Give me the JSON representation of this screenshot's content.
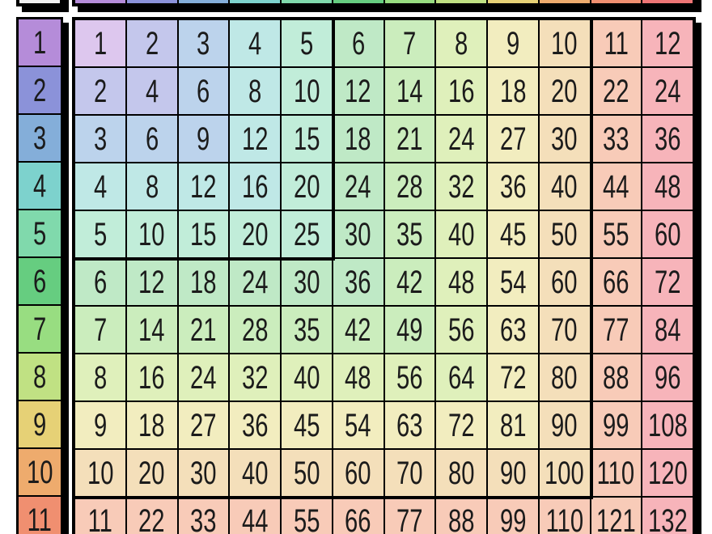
{
  "chart_data": {
    "type": "table",
    "description": "Multiplication chart; cell value = row x column; cells tinted by rainbow band of max(row, column); thick outlines around the 5x5 and 10x10 blocks; top header row and rows past 11 are cut off by the viewport",
    "top_header_cell_count": 12,
    "left_header_values": [
      1,
      2,
      3,
      4,
      5,
      6,
      7,
      8,
      9,
      10,
      11
    ],
    "rows": [
      [
        1,
        2,
        3,
        4,
        5,
        6,
        7,
        8,
        9,
        10,
        11,
        12
      ],
      [
        2,
        4,
        6,
        8,
        10,
        12,
        14,
        16,
        18,
        20,
        22,
        24
      ],
      [
        3,
        6,
        9,
        12,
        15,
        18,
        21,
        24,
        27,
        30,
        33,
        36
      ],
      [
        4,
        8,
        12,
        16,
        20,
        24,
        28,
        32,
        36,
        40,
        44,
        48
      ],
      [
        5,
        10,
        15,
        20,
        25,
        30,
        35,
        40,
        45,
        50,
        55,
        60
      ],
      [
        6,
        12,
        18,
        24,
        30,
        36,
        42,
        48,
        54,
        60,
        66,
        72
      ],
      [
        7,
        14,
        21,
        28,
        35,
        42,
        49,
        56,
        63,
        70,
        77,
        84
      ],
      [
        8,
        16,
        24,
        32,
        40,
        48,
        56,
        64,
        72,
        80,
        88,
        96
      ],
      [
        9,
        18,
        27,
        36,
        45,
        54,
        63,
        72,
        81,
        90,
        99,
        108
      ],
      [
        10,
        20,
        30,
        40,
        50,
        60,
        70,
        80,
        90,
        100,
        110,
        120
      ],
      [
        11,
        22,
        33,
        44,
        55,
        66,
        77,
        88,
        99,
        110,
        121,
        132
      ]
    ]
  },
  "palette": {
    "header_bands": [
      "#b58cd9",
      "#8b92d9",
      "#84aed9",
      "#7dd2cd",
      "#80d9ac",
      "#66cd80",
      "#98dd81",
      "#c0e183",
      "#e6d176",
      "#eeab6d",
      "#f08f70",
      "#ee7575"
    ],
    "cell_bands": [
      "#ddc7ee",
      "#c4c7ec",
      "#bcd3ec",
      "#bfe8e6",
      "#c1edd9",
      "#bfe9c6",
      "#cbedbd",
      "#dff0bb",
      "#f2edbf",
      "#f4dfba",
      "#f8cbb8",
      "#f7b4ba"
    ],
    "corner_fill": "#f2f2f2",
    "grid_line": "#000000",
    "number_text": "#1b1b1b",
    "shadow": "#000000",
    "page_background": "#ffffff"
  }
}
